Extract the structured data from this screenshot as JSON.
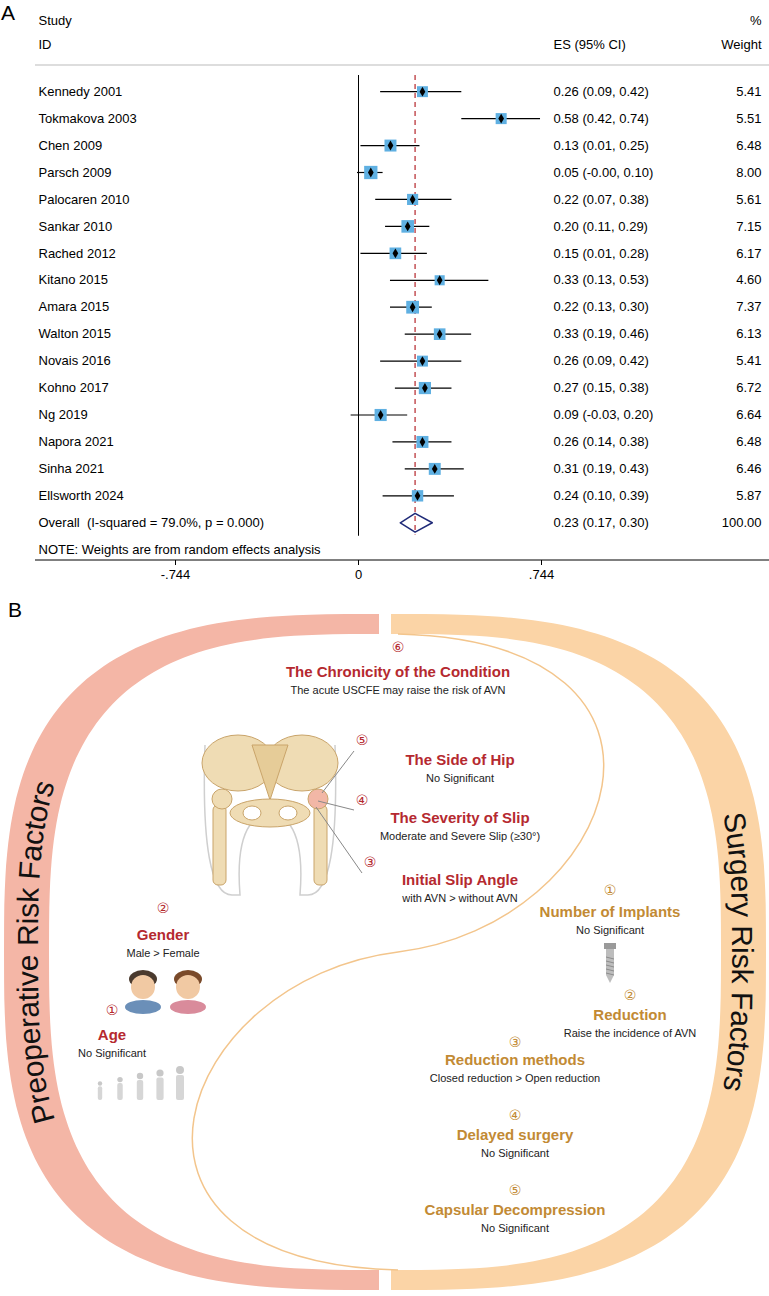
{
  "chart_data": {
    "type": "forest",
    "panel_label": "A",
    "header": {
      "study": "Study",
      "id": "ID",
      "effect": "ES (95% CI)",
      "weight_unit": "%",
      "weight": "Weight"
    },
    "categories": [
      "Kennedy 2001",
      "Tokmakova 2003",
      "Chen 2009",
      "Parsch 2009",
      "Palocaren 2010",
      "Sankar 2010",
      "Rached 2012",
      "Kitano 2015",
      "Amara 2015",
      "Walton 2015",
      "Novais 2016",
      "Kohno 2017",
      "Ng 2019",
      "Napora 2021",
      "Sinha 2021",
      "Ellsworth 2024"
    ],
    "values": [
      0.26,
      0.58,
      0.13,
      0.05,
      0.22,
      0.2,
      0.15,
      0.33,
      0.22,
      0.33,
      0.26,
      0.27,
      0.09,
      0.26,
      0.31,
      0.24
    ],
    "lower": [
      0.09,
      0.42,
      0.01,
      -0.004,
      0.07,
      0.11,
      0.01,
      0.13,
      0.13,
      0.19,
      0.09,
      0.15,
      -0.03,
      0.14,
      0.19,
      0.1
    ],
    "upper": [
      0.42,
      0.74,
      0.25,
      0.1,
      0.38,
      0.29,
      0.28,
      0.53,
      0.3,
      0.46,
      0.42,
      0.38,
      0.2,
      0.38,
      0.43,
      0.39
    ],
    "value_labels": [
      "0.26 (0.09, 0.42)",
      "0.58 (0.42, 0.74)",
      "0.13 (0.01, 0.25)",
      "0.05 (-0.00, 0.10)",
      "0.22 (0.07, 0.38)",
      "0.20 (0.11, 0.29)",
      "0.15 (0.01, 0.28)",
      "0.33 (0.13, 0.53)",
      "0.22 (0.13, 0.30)",
      "0.33 (0.19, 0.46)",
      "0.26 (0.09, 0.42)",
      "0.27 (0.15, 0.38)",
      "0.09 (-0.03, 0.20)",
      "0.26 (0.14, 0.38)",
      "0.31 (0.19, 0.43)",
      "0.24 (0.10, 0.39)"
    ],
    "weights": [
      5.41,
      5.51,
      6.48,
      8.0,
      5.61,
      7.15,
      6.17,
      4.6,
      7.37,
      6.13,
      5.41,
      6.72,
      6.64,
      6.48,
      6.46,
      5.87
    ],
    "weight_labels": [
      "5.41",
      "5.51",
      "6.48",
      "8.00",
      "5.61",
      "7.15",
      "6.17",
      "4.60",
      "7.37",
      "6.13",
      "5.41",
      "6.72",
      "6.64",
      "6.48",
      "6.46",
      "5.87"
    ],
    "overall": {
      "label": "Overall  (I-squared = 79.0%, p = 0.000)",
      "value": 0.23,
      "lower": 0.17,
      "upper": 0.3,
      "value_label": "0.23 (0.17, 0.30)",
      "weight_label": "100.00"
    },
    "note": "NOTE: Weights are from random effects analysis",
    "xlim": [
      -0.744,
      0.744
    ],
    "xticks": [
      {
        "value": -0.744,
        "label": "-.744"
      },
      0,
      {
        "value": 0.744,
        "label": ".744"
      }
    ],
    "color": "#5fb0e2"
  },
  "diagram": {
    "panel_label": "B",
    "sections": [
      {
        "title": "Preoperative Risk Factors",
        "items": [
          {
            "number": "①",
            "title": "Age",
            "note": "No Significant"
          },
          {
            "number": "②",
            "title": "Gender",
            "note": "Male > Female"
          },
          {
            "number": "③",
            "title": "Initial Slip Angle",
            "note": "with AVN > without AVN"
          },
          {
            "number": "④",
            "title": "The Severity of Slip",
            "note": "Moderate and Severe Slip (≥30°)"
          },
          {
            "number": "⑤",
            "title": "The Side of Hip",
            "note": "No Significant"
          },
          {
            "number": "⑥",
            "title": "The Chronicity of the Condition",
            "note": "The acute USCFE may raise the risk of AVN"
          }
        ]
      },
      {
        "title": "Surgery Risk Factors",
        "items": [
          {
            "number": "①",
            "title": "Number of Implants",
            "note": "No Significant"
          },
          {
            "number": "②",
            "title": "Reduction",
            "note": "Raise the incidence of AVN"
          },
          {
            "number": "③",
            "title": "Reduction methods",
            "note": "Closed reduction > Open reduction"
          },
          {
            "number": "④",
            "title": "Delayed surgery",
            "note": "No Significant"
          },
          {
            "number": "⑤",
            "title": "Capsular Decompression",
            "note": "No Significant"
          }
        ]
      }
    ]
  }
}
